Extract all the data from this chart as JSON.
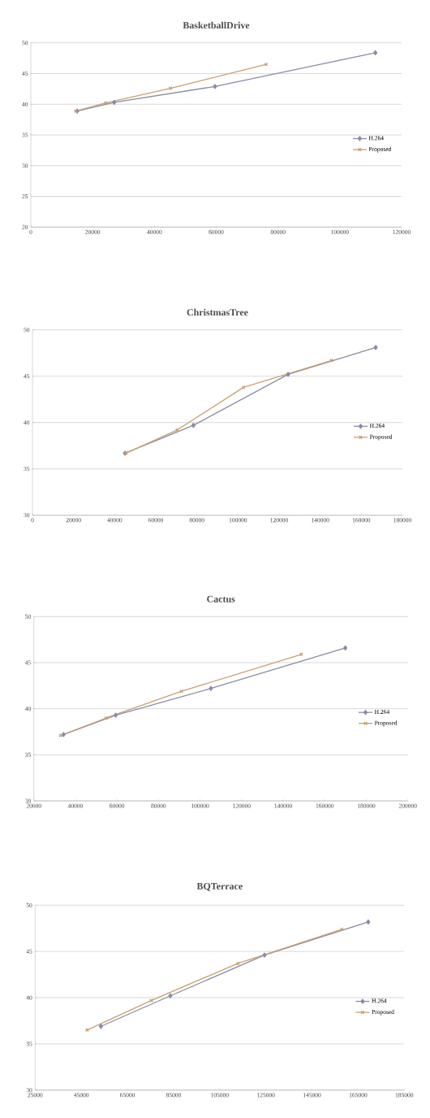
{
  "chart_data": [
    {
      "type": "line",
      "title": "BasketballDrive",
      "grid": "y",
      "legend": "right",
      "line_style": "solid",
      "xlim": [
        0,
        120000
      ],
      "xticks": [
        0,
        20000,
        40000,
        60000,
        80000,
        100000,
        120000
      ],
      "ylim": [
        20,
        50
      ],
      "yticks": [
        20,
        25,
        30,
        35,
        40,
        45,
        50
      ],
      "series": [
        {
          "name": "H.264",
          "color": "#8a8aa8",
          "marker": "diamond",
          "x": [
            15000,
            27000,
            59600,
            111500
          ],
          "values": [
            38.9,
            40.3,
            42.9,
            48.4
          ]
        },
        {
          "name": "Proposed",
          "color": "#c8a070",
          "marker": "cross",
          "x": [
            14500,
            24200,
            45200,
            76200
          ],
          "values": [
            38.9,
            40.2,
            42.6,
            46.5
          ]
        }
      ]
    },
    {
      "type": "line",
      "title": "ChristmasTree",
      "grid": "y",
      "legend": "right",
      "line_style": "solid",
      "xlim": [
        0,
        180000
      ],
      "xticks": [
        0,
        20000,
        40000,
        60000,
        80000,
        100000,
        120000,
        140000,
        160000,
        180000
      ],
      "ylim": [
        30,
        50
      ],
      "yticks": [
        30,
        35,
        40,
        45,
        50
      ],
      "series": [
        {
          "name": "H.264",
          "color": "#8a8aa8",
          "marker": "diamond",
          "x": [
            45000,
            78300,
            124400,
            167000
          ],
          "values": [
            36.7,
            39.7,
            45.2,
            48.1
          ]
        },
        {
          "name": "Proposed",
          "color": "#c8a070",
          "marker": "cross",
          "x": [
            45500,
            70400,
            102700,
            145500
          ],
          "values": [
            36.7,
            39.2,
            43.8,
            46.7
          ]
        }
      ]
    },
    {
      "type": "line",
      "title": "Cactus",
      "grid": "y",
      "legend": "right",
      "line_style": "solid",
      "xlim": [
        20000,
        200000
      ],
      "xticks": [
        20000,
        40000,
        60000,
        80000,
        100000,
        120000,
        140000,
        160000,
        180000,
        200000
      ],
      "ylim": [
        30,
        50
      ],
      "yticks": [
        30,
        35,
        40,
        45,
        50
      ],
      "series": [
        {
          "name": "H.264",
          "color": "#8a8aa8",
          "marker": "diamond",
          "x": [
            34300,
            59400,
            105200,
            169900
          ],
          "values": [
            37.2,
            39.3,
            42.2,
            46.6
          ]
        },
        {
          "name": "Proposed",
          "color": "#c8a070",
          "marker": "cross",
          "x": [
            32900,
            54800,
            91100,
            148700
          ],
          "values": [
            37.1,
            39.0,
            41.9,
            45.9
          ]
        }
      ]
    },
    {
      "type": "line",
      "title": "BQTerrace",
      "grid": "y",
      "legend": "right",
      "line_style": "solid",
      "xlim": [
        25000,
        185000
      ],
      "xticks": [
        25000,
        45000,
        65000,
        85000,
        105000,
        125000,
        145000,
        165000,
        185000
      ],
      "ylim": [
        30,
        50
      ],
      "yticks": [
        30,
        35,
        40,
        45,
        50
      ],
      "series": [
        {
          "name": "H.264",
          "color": "#8a8aa8",
          "marker": "diamond",
          "x": [
            53500,
            83600,
            124400,
            169400
          ],
          "values": [
            36.9,
            40.2,
            44.6,
            48.2
          ]
        },
        {
          "name": "Proposed",
          "color": "#c8a070",
          "marker": "cross",
          "x": [
            47500,
            75400,
            112900,
            158000
          ],
          "values": [
            36.5,
            39.7,
            43.7,
            47.4
          ]
        }
      ]
    }
  ]
}
